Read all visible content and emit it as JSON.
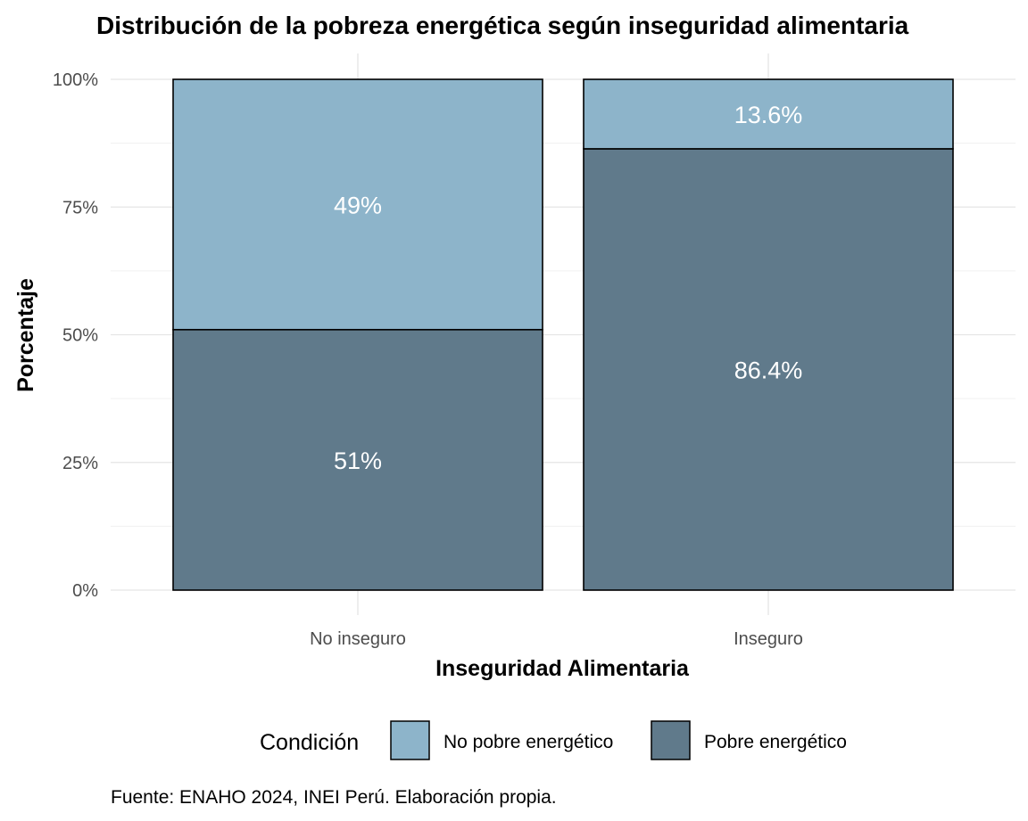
{
  "chart_data": {
    "type": "bar",
    "stacked": true,
    "normalized_percent": true,
    "title": "Distribución de la pobreza energética según inseguridad alimentaria",
    "xlabel": "Inseguridad Alimentaria",
    "ylabel": "Porcentaje",
    "categories": [
      "No inseguro",
      "Inseguro"
    ],
    "series": [
      {
        "name": "Pobre energético",
        "values": [
          51,
          86.4
        ],
        "labels": [
          "51%",
          "86.4%"
        ],
        "color": "#607a8b"
      },
      {
        "name": "No pobre energético",
        "values": [
          49,
          13.6
        ],
        "labels": [
          "49%",
          "13.6%"
        ],
        "color": "#8db4ca"
      }
    ],
    "ylim": [
      0,
      100
    ],
    "yticks": [
      0,
      25,
      50,
      75,
      100
    ],
    "ytick_labels": [
      "0%",
      "25%",
      "50%",
      "75%",
      "100%"
    ],
    "legend": {
      "title": "Condición",
      "position": "bottom",
      "entries": [
        "No pobre energético",
        "Pobre energético"
      ]
    },
    "grid": true,
    "caption": "Fuente: ENAHO 2024, INEI Perú. Elaboración propia."
  }
}
